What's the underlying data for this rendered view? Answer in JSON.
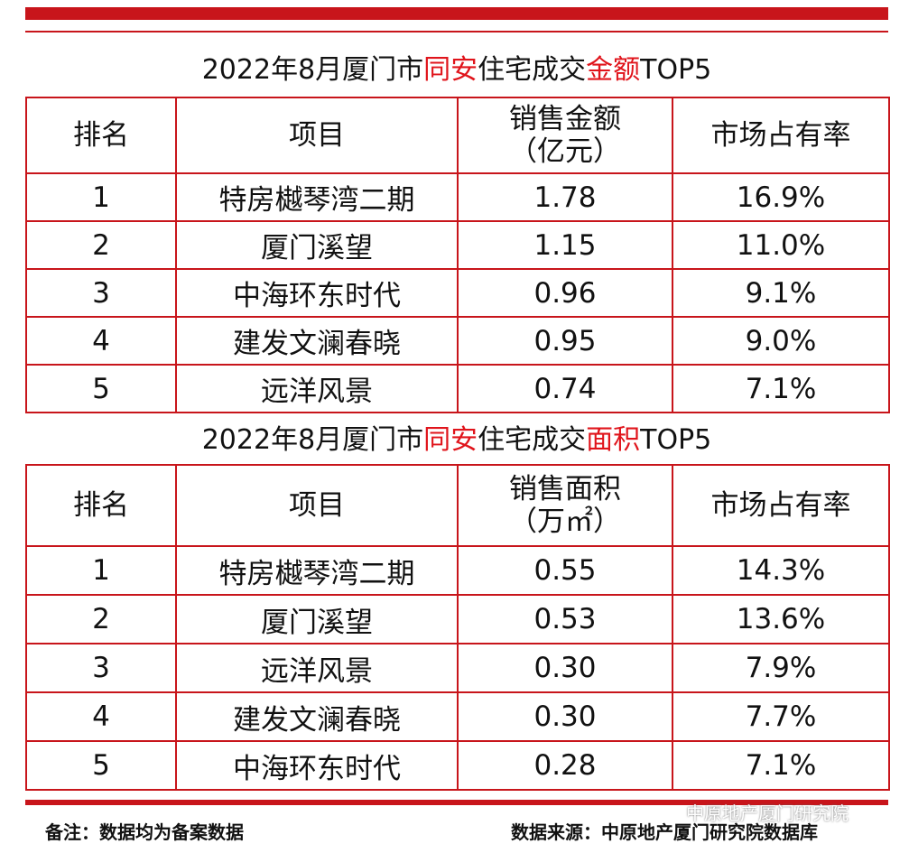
{
  "table1": {
    "title_prefix": "2022年8月厦门市",
    "title_area": "同安",
    "title_mid": "住宅成交",
    "title_metric": "金额",
    "title_suffix": "TOP5",
    "headers": [
      "排名",
      "项目",
      "销售金额\n（亿元）",
      "市场占有率"
    ],
    "rows": [
      [
        "1",
        "特房樾琴湾二期",
        "1.78",
        "16.9%"
      ],
      [
        "2",
        "厦门溪望",
        "1.15",
        "11.0%"
      ],
      [
        "3",
        "中海环东时代",
        "0.96",
        "9.1%"
      ],
      [
        "4",
        "建发文澜春晓",
        "0.95",
        "9.0%"
      ],
      [
        "5",
        "远洋风景",
        "0.74",
        "7.1%"
      ]
    ]
  },
  "table2": {
    "title_prefix": "2022年8月厦门市",
    "title_area": "同安",
    "title_mid": "住宅成交",
    "title_metric": "面积",
    "title_suffix": "TOP5",
    "headers": [
      "排名",
      "项目",
      "销售面积\n（万㎡）",
      "市场占有率"
    ],
    "rows": [
      [
        "1",
        "特房樾琴湾二期",
        "0.55",
        "14.3%"
      ],
      [
        "2",
        "厦门溪望",
        "0.53",
        "13.6%"
      ],
      [
        "3",
        "远洋风景",
        "0.30",
        "7.9%"
      ],
      [
        "4",
        "建发文澜春晓",
        "0.30",
        "7.7%"
      ],
      [
        "5",
        "中海环东时代",
        "0.28",
        "7.1%"
      ]
    ]
  },
  "footer": {
    "note": "备注：数据均为备案数据",
    "source": "数据来源：中原地产厦门研究院数据库",
    "wechat_mark": "中原地产厦门研究院"
  },
  "colors": {
    "accent": "#c8151b",
    "highlight_text": "#e0141b"
  }
}
